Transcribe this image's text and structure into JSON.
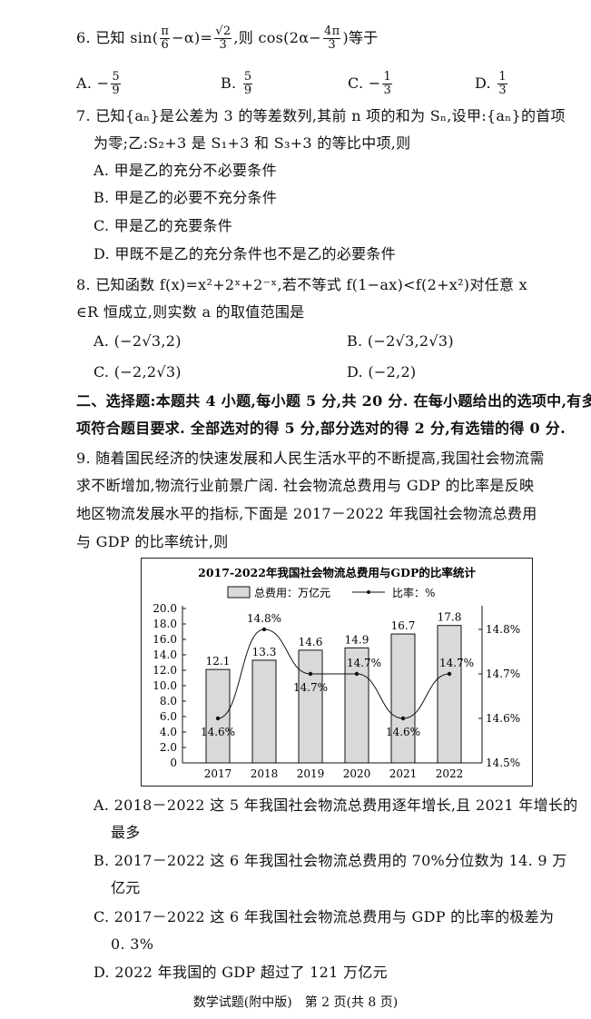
{
  "q6": {
    "prefix": "6. 已知 sin(",
    "f1n": "π",
    "f1d": "6",
    "mid1": "−α)=",
    "f2n": "√2",
    "f2d": "3",
    "mid2": ",则 cos(2α−",
    "f3n": "4π",
    "f3d": "3",
    "suffix": ")等于",
    "options": [
      {
        "label": "A.",
        "sign": "−",
        "n": "5",
        "d": "9"
      },
      {
        "label": "B.",
        "sign": "",
        "n": "5",
        "d": "9"
      },
      {
        "label": "C.",
        "sign": "−",
        "n": "1",
        "d": "3"
      },
      {
        "label": "D.",
        "sign": "",
        "n": "1",
        "d": "3"
      }
    ]
  },
  "q7": {
    "line1": "7. 已知{aₙ}是公差为 3 的等差数列,其前 n 项的和为 Sₙ,设甲:{aₙ}的首项",
    "line2": "为零;乙:S₂+3 是 S₁+3 和 S₃+3 的等比中项,则",
    "options": [
      "A. 甲是乙的充分不必要条件",
      "B. 甲是乙的必要不充分条件",
      "C. 甲是乙的充要条件",
      "D. 甲既不是乙的充分条件也不是乙的必要条件"
    ]
  },
  "q8": {
    "line1": "8. 已知函数 f(x)=x²+2ˣ+2⁻ˣ,若不等式 f(1−ax)<f(2+x²)对任意 x",
    "line2": "∈R 恒成立,则实数 a 的取值范围是",
    "options": [
      "A. (−2√3,2)",
      "B. (−2√3,2√3)",
      "C. (−2,2√3)",
      "D. (−2,2)"
    ]
  },
  "section2": {
    "line1": "二、选择题:本题共 4 小题,每小题 5 分,共 20 分. 在每小题给出的选项中,有多",
    "line2": "项符合题目要求. 全部选对的得 5 分,部分选对的得 2 分,有选错的得 0 分."
  },
  "q9": {
    "lines": [
      "9. 随着国民经济的快速发展和人民生活水平的不断提高,我国社会物流需",
      "求不断增加,物流行业前景广阔. 社会物流总费用与 GDP 的比率是反映",
      "地区物流发展水平的指标,下面是 2017－2022 年我国社会物流总费用",
      "与 GDP 的比率统计,则"
    ],
    "options": [
      [
        "A. 2018－2022 这 5 年我国社会物流总费用逐年增长,且 2021 年增长的",
        "最多"
      ],
      [
        "B. 2017－2022 这 6 年我国社会物流总费用的 70%分位数为 14. 9 万",
        "亿元"
      ],
      [
        "C. 2017－2022 这 6 年我国社会物流总费用与 GDP 的比率的极差为",
        "0. 3%"
      ],
      [
        "D. 2022 年我国的 GDP 超过了 121 万亿元"
      ]
    ]
  },
  "chart_data": {
    "type": "bar+line",
    "title": "2017-2022年我国社会物流总费用与GDP的比率统计",
    "categories": [
      "2017",
      "2018",
      "2019",
      "2020",
      "2021",
      "2022"
    ],
    "series": [
      {
        "name": "总费用：万亿元",
        "type": "bar",
        "values": [
          12.1,
          13.3,
          14.6,
          14.9,
          16.7,
          17.8
        ],
        "labels": [
          "12.1",
          "13.3",
          "14.6",
          "14.9",
          "16.7",
          "17.8"
        ],
        "axis": "left",
        "color": "#d9d9d9"
      },
      {
        "name": "比率：%",
        "type": "line",
        "values": [
          14.6,
          14.8,
          14.7,
          14.7,
          14.6,
          14.7
        ],
        "labels": [
          "14.6%",
          "14.8%",
          "14.7%",
          "14.7%",
          "14.6%",
          "14.7%"
        ],
        "axis": "right",
        "color": "#111111"
      }
    ],
    "left_axis": {
      "ylim": [
        0,
        20
      ],
      "ticks": [
        "0",
        "2.0",
        "4.0",
        "6.0",
        "8.0",
        "10.0",
        "12.0",
        "14.0",
        "16.0",
        "18.0",
        "20.0"
      ]
    },
    "right_axis": {
      "ticks": [
        "14.5%",
        "14.6%",
        "14.7%",
        "14.8%"
      ],
      "values": [
        14.5,
        14.6,
        14.7,
        14.8
      ]
    },
    "legend_placement": "top",
    "grid": false
  },
  "footer": "数学试题(附中版)　第 2 页(共 8 页)"
}
